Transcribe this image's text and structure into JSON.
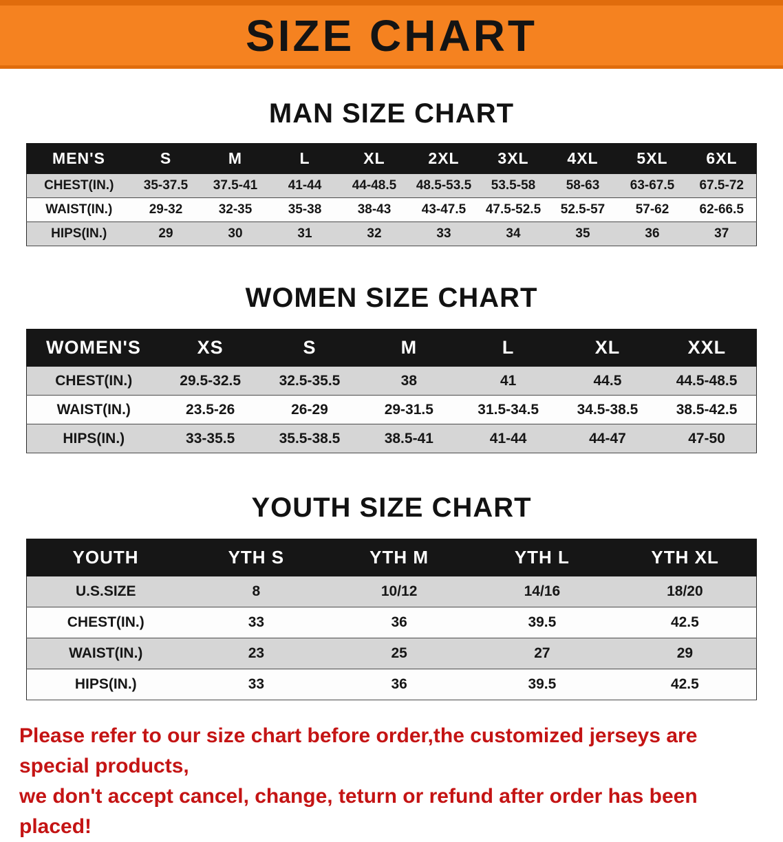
{
  "banner": {
    "title": "SIZE CHART",
    "bg_color": "#f58220"
  },
  "colors": {
    "banner_orange": "#f58220",
    "table_header_black": "#161616",
    "stripe_gray": "#d6d6d6",
    "disclaimer_red": "#c41414"
  },
  "men": {
    "heading": "MAN SIZE CHART",
    "table": {
      "header": [
        "MEN'S",
        "S",
        "M",
        "L",
        "XL",
        "2XL",
        "3XL",
        "4XL",
        "5XL",
        "6XL"
      ],
      "rows": [
        [
          "CHEST(IN.)",
          "35-37.5",
          "37.5-41",
          "41-44",
          "44-48.5",
          "48.5-53.5",
          "53.5-58",
          "58-63",
          "63-67.5",
          "67.5-72"
        ],
        [
          "WAIST(IN.)",
          "29-32",
          "32-35",
          "35-38",
          "38-43",
          "43-47.5",
          "47.5-52.5",
          "52.5-57",
          "57-62",
          "62-66.5"
        ],
        [
          "HIPS(IN.)",
          "29",
          "30",
          "31",
          "32",
          "33",
          "34",
          "35",
          "36",
          "37"
        ]
      ]
    }
  },
  "women": {
    "heading": "WOMEN SIZE CHART",
    "table": {
      "header": [
        "WOMEN'S",
        "XS",
        "S",
        "M",
        "L",
        "XL",
        "XXL"
      ],
      "rows": [
        [
          "CHEST(IN.)",
          "29.5-32.5",
          "32.5-35.5",
          "38",
          "41",
          "44.5",
          "44.5-48.5"
        ],
        [
          "WAIST(IN.)",
          "23.5-26",
          "26-29",
          "29-31.5",
          "31.5-34.5",
          "34.5-38.5",
          "38.5-42.5"
        ],
        [
          "HIPS(IN.)",
          "33-35.5",
          "35.5-38.5",
          "38.5-41",
          "41-44",
          "44-47",
          "47-50"
        ]
      ]
    }
  },
  "youth": {
    "heading": "YOUTH SIZE CHART",
    "table": {
      "header": [
        "YOUTH",
        "YTH S",
        "YTH M",
        "YTH L",
        "YTH XL"
      ],
      "rows": [
        [
          "U.S.SIZE",
          "8",
          "10/12",
          "14/16",
          "18/20"
        ],
        [
          "CHEST(IN.)",
          "33",
          "36",
          "39.5",
          "42.5"
        ],
        [
          "WAIST(IN.)",
          "23",
          "25",
          "27",
          "29"
        ],
        [
          "HIPS(IN.)",
          "33",
          "36",
          "39.5",
          "42.5"
        ]
      ]
    }
  },
  "footer": {
    "lines": [
      "Please refer to our size chart before order,the customized jerseys are special products,",
      "we don't accept cancel, change, teturn or refund after order has been placed!"
    ]
  }
}
